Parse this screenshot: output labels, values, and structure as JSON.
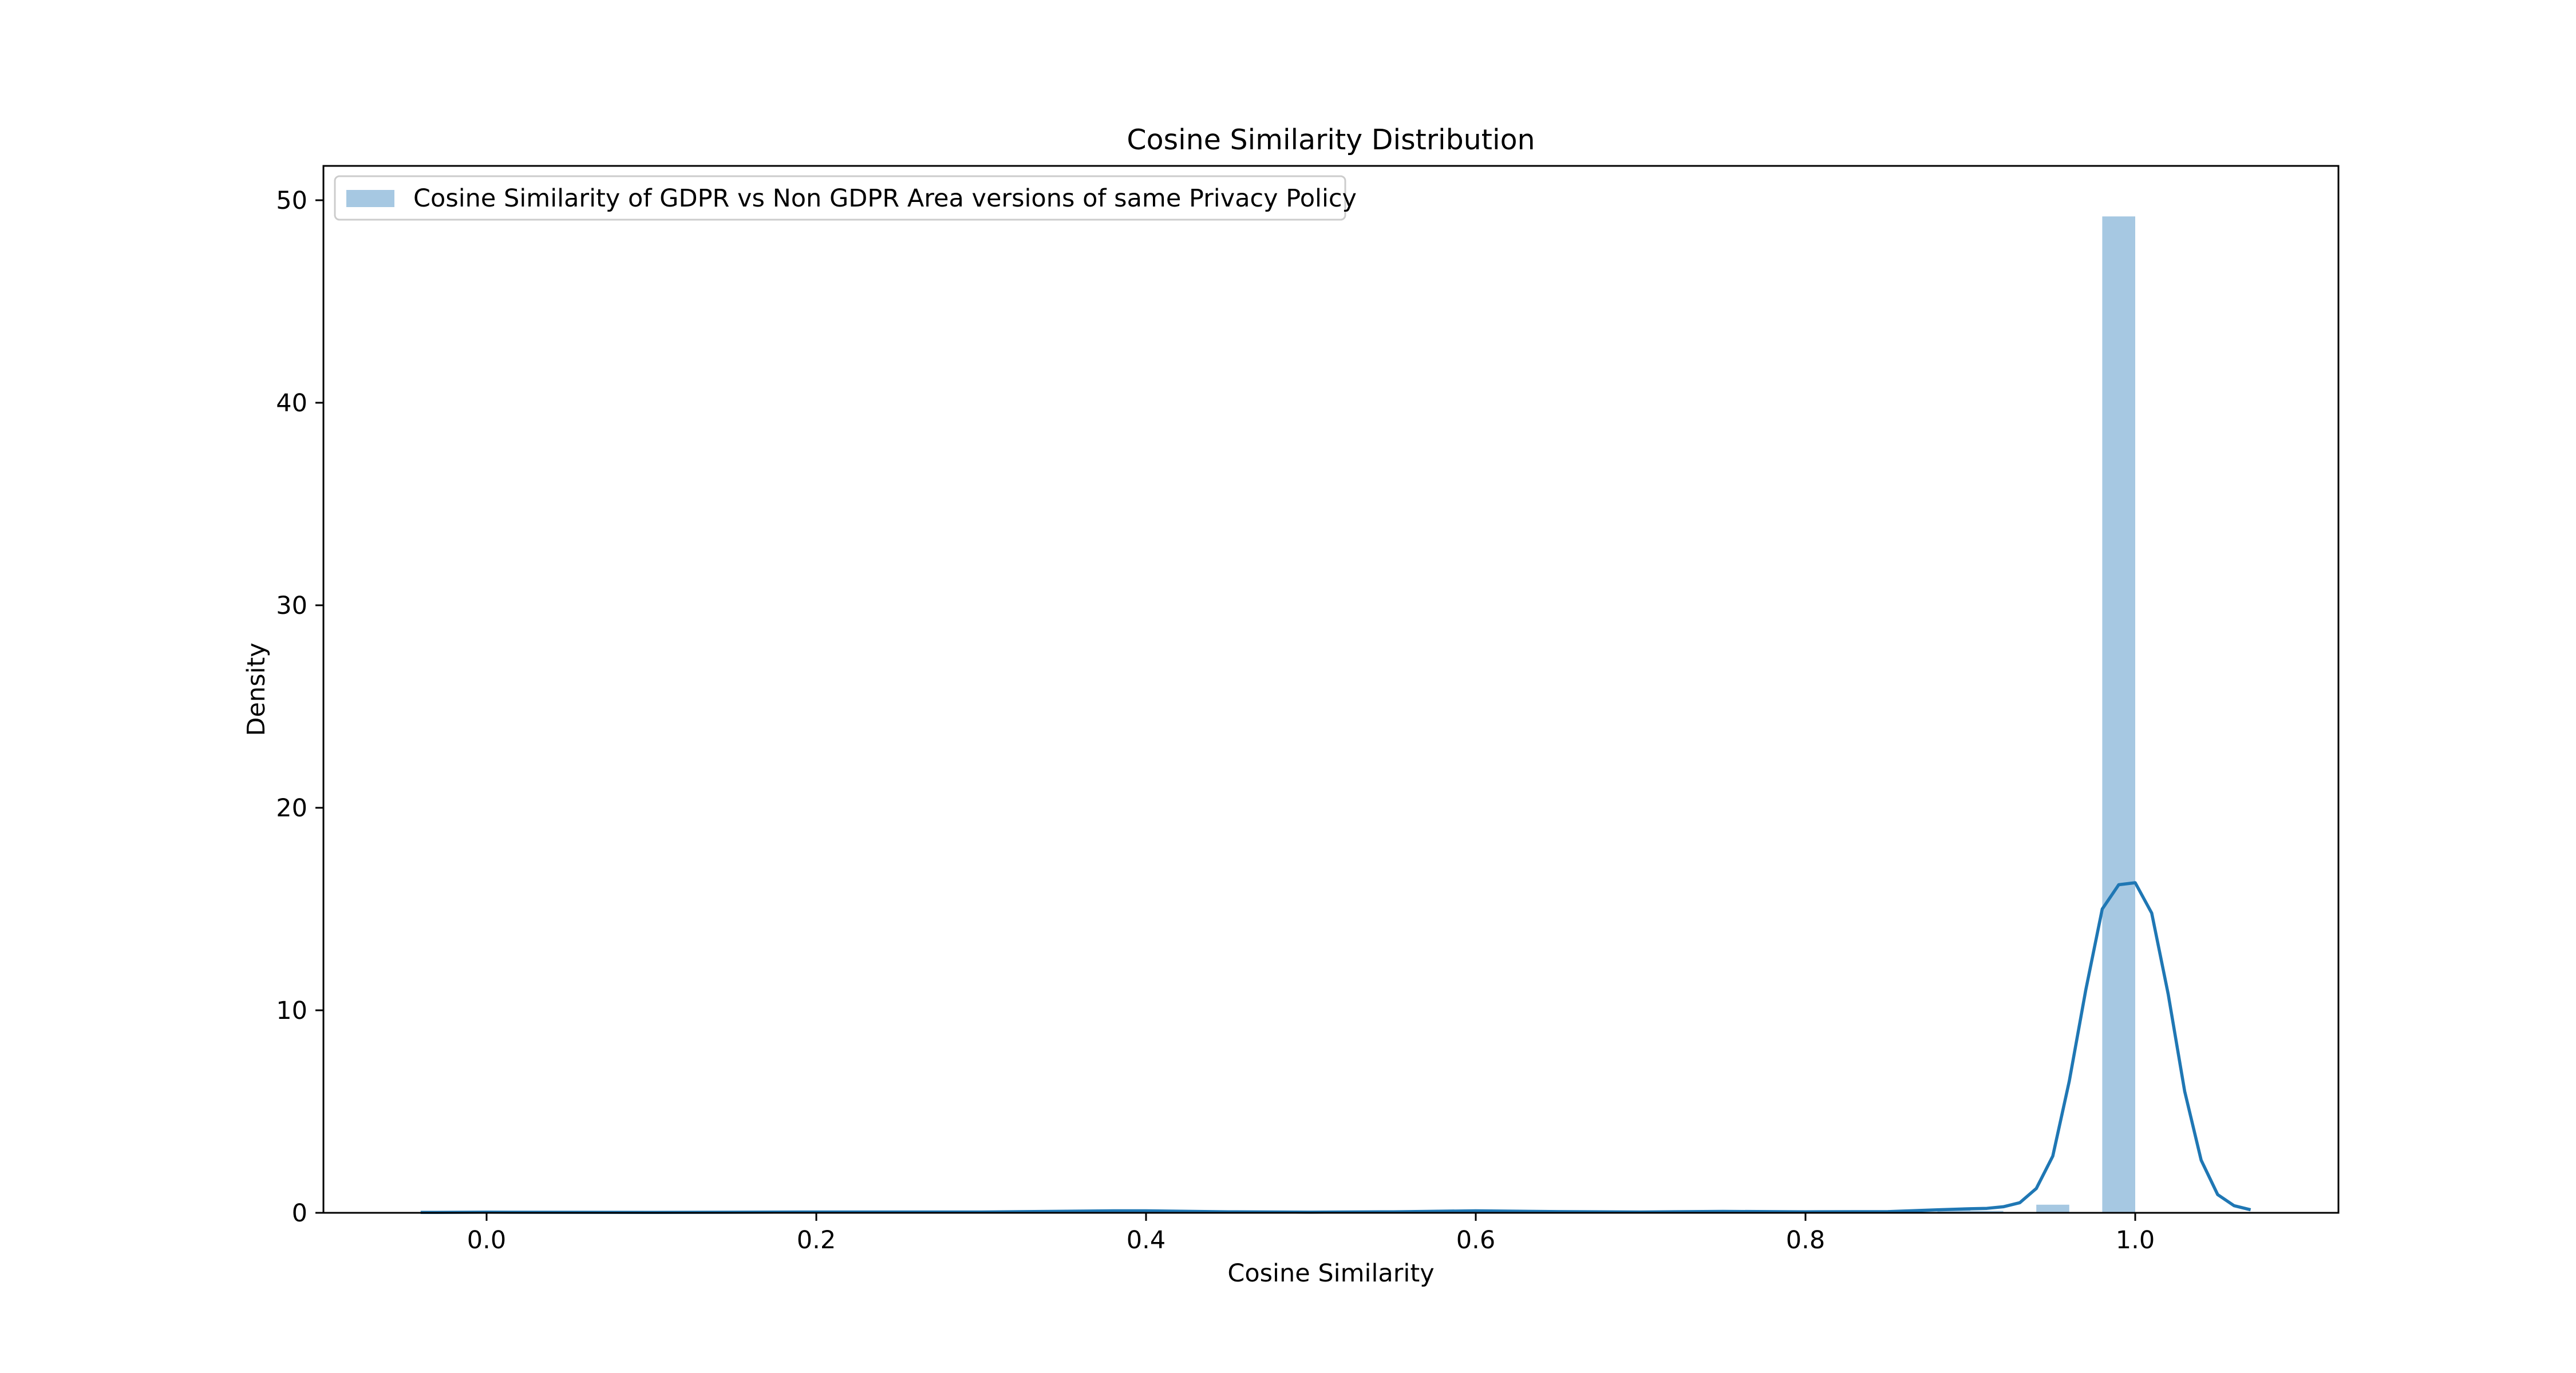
{
  "chart_data": {
    "type": "bar",
    "title": "Cosine Similarity Distribution",
    "xlabel": "Cosine Similarity",
    "ylabel": "Density",
    "xlim": [
      -0.1,
      1.125
    ],
    "ylim": [
      0,
      52
    ],
    "xticks": [
      "0.0",
      "0.2",
      "0.4",
      "0.6",
      "0.8",
      "1.0"
    ],
    "yticks": [
      "0",
      "10",
      "20",
      "30",
      "40",
      "50"
    ],
    "grid": false,
    "legend_position": "top-left",
    "legend": [
      "Cosine Similarity of GDPR vs Non GDPR Area versions of same Privacy Policy"
    ],
    "colors": {
      "bar": "#a6c8e2",
      "kde": "#1f77b4"
    },
    "bins": [
      {
        "x0": 0.0,
        "x1": 0.02,
        "density": 0.05
      },
      {
        "x0": 0.38,
        "x1": 0.4,
        "density": 0.1
      },
      {
        "x0": 0.58,
        "x1": 0.6,
        "density": 0.08
      },
      {
        "x0": 0.74,
        "x1": 0.76,
        "density": 0.05
      },
      {
        "x0": 0.88,
        "x1": 0.9,
        "density": 0.2
      },
      {
        "x0": 0.9,
        "x1": 0.92,
        "density": 0.1
      },
      {
        "x0": 0.94,
        "x1": 0.96,
        "density": 0.4
      },
      {
        "x0": 0.98,
        "x1": 1.0,
        "density": 49.2
      }
    ],
    "kde": {
      "x": [
        -0.04,
        0.0,
        0.1,
        0.2,
        0.3,
        0.38,
        0.4,
        0.45,
        0.5,
        0.55,
        0.6,
        0.65,
        0.7,
        0.75,
        0.8,
        0.85,
        0.88,
        0.9,
        0.91,
        0.92,
        0.93,
        0.94,
        0.95,
        0.96,
        0.97,
        0.98,
        0.99,
        1.0,
        1.01,
        1.02,
        1.03,
        1.04,
        1.05,
        1.06,
        1.07
      ],
      "y": [
        0.02,
        0.03,
        0.02,
        0.04,
        0.04,
        0.1,
        0.1,
        0.05,
        0.03,
        0.05,
        0.1,
        0.06,
        0.04,
        0.07,
        0.05,
        0.06,
        0.15,
        0.2,
        0.22,
        0.3,
        0.5,
        1.2,
        2.8,
        6.5,
        11.0,
        15.0,
        16.2,
        16.3,
        14.8,
        10.8,
        6.0,
        2.6,
        0.9,
        0.35,
        0.15
      ]
    }
  }
}
